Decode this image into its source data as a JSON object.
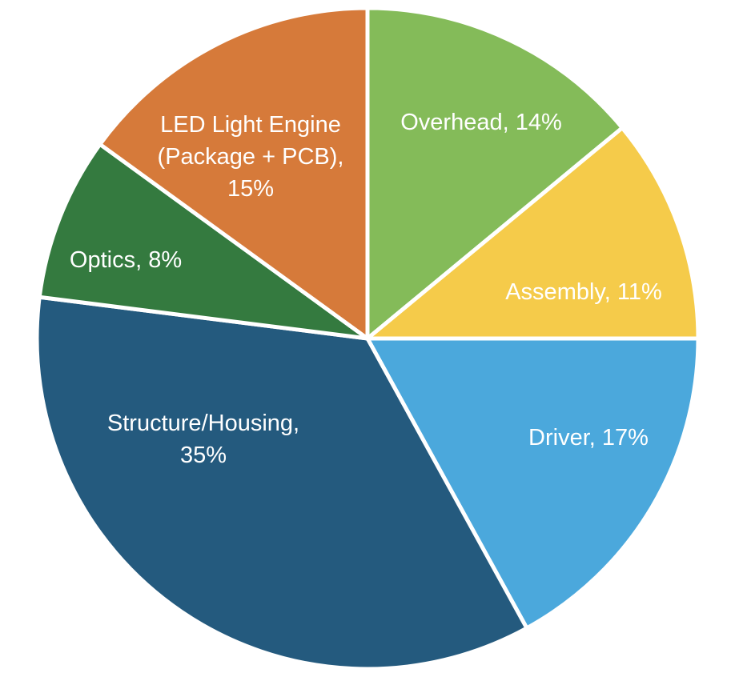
{
  "chart_data": {
    "type": "pie",
    "title": "",
    "start_angle_deg": 0,
    "direction": "clockwise",
    "slices": [
      {
        "category": "Overhead",
        "value": 14,
        "color": "#84BB59",
        "label_lines": [
          "Overhead, 14%"
        ]
      },
      {
        "category": "Assembly",
        "value": 11,
        "color": "#F5CB4A",
        "label_lines": [
          "Assembly, 11%"
        ]
      },
      {
        "category": "Driver",
        "value": 17,
        "color": "#4BA8DC",
        "label_lines": [
          "Driver, 17%"
        ]
      },
      {
        "category": "Structure/Housing",
        "value": 35,
        "color": "#245A7E",
        "label_lines": [
          "Structure/Housing,",
          "35%"
        ]
      },
      {
        "category": "Optics",
        "value": 8,
        "color": "#347A3F",
        "label_lines": [
          "Optics, 8%"
        ]
      },
      {
        "category": "LED Light Engine (Package + PCB)",
        "value": 15,
        "color": "#D67A3A",
        "label_lines": [
          "LED Light Engine",
          "(Package + PCB),",
          "15%"
        ]
      }
    ]
  }
}
